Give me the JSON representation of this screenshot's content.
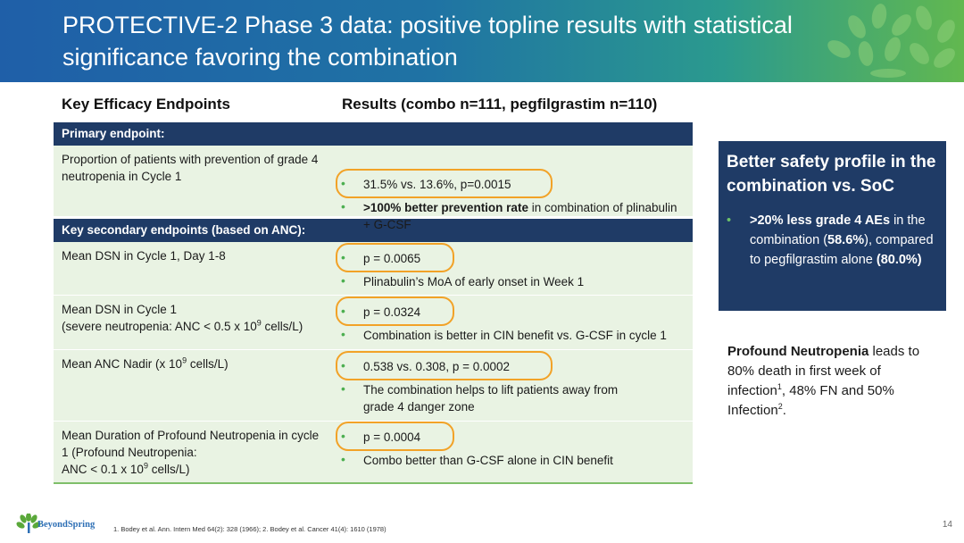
{
  "header": {
    "title": "PROTECTIVE-2 Phase 3 data: positive topline results with statistical significance favoring the combination"
  },
  "columns": {
    "left": "Key Efficacy Endpoints",
    "right": "Results (combo n=111, pegfilgrastim n=110)"
  },
  "primary": {
    "header": "Primary endpoint:",
    "row": {
      "endpoint": "Proportion of patients with prevention of grade 4 neutropenia in Cycle 1",
      "result": "31.5% vs. 13.6%, p=0.0015",
      "note_bold": ">100% better prevention rate",
      "note_rest": " in combination of plinabulin + G-CSF"
    }
  },
  "secondary": {
    "header": "Key secondary endpoints (based on ANC):",
    "rows": [
      {
        "endpoint": "Mean DSN in Cycle 1, Day 1-8",
        "result": "p = 0.0065",
        "note": "Plinabulin’s MoA of early onset in Week 1"
      },
      {
        "endpoint_line1": "Mean DSN in Cycle 1",
        "endpoint_line2a": "(severe neutropenia: ANC < 0.5 x 10",
        "endpoint_line2sup": "9",
        "endpoint_line2b": " cells/L)",
        "result": "p = 0.0324",
        "note": "Combination is better in CIN benefit vs. G-CSF in cycle 1"
      },
      {
        "endpoint_a": "Mean ANC Nadir (x 10",
        "endpoint_sup": "9",
        "endpoint_b": " cells/L)",
        "result": "0.538 vs. 0.308, p = 0.0002",
        "note": "The combination helps to lift patients away from grade 4 danger zone"
      },
      {
        "endpoint_line1": "Mean Duration of Profound Neutropenia in cycle 1 (Profound Neutropenia:",
        "endpoint_line2a": "ANC < 0.1 x 10",
        "endpoint_line2sup": "9",
        "endpoint_line2b": " cells/L)",
        "result": "p = 0.0004",
        "note": "Combo better than G-CSF alone in CIN benefit"
      }
    ]
  },
  "safety": {
    "title": "Better safety profile in the combination vs. SoC",
    "b1": ">20% less grade 4 AEs",
    "t1": " in the combination (",
    "b2": "58.6%",
    "t2": "), compared to pegfilgrastim alone ",
    "b3": "(80.0%)"
  },
  "neutropenia_note": {
    "bold": "Profound Neutropenia",
    "text1": " leads to 80% death in first week of infection",
    "sup1": "1",
    "text2": ", 48% FN and 50% Infection",
    "sup2": "2",
    "text3": "."
  },
  "footer": {
    "logo": "BeyondSpring",
    "footnote": "1. Bodey et al. Ann. Intern Med 64(2): 328 (1966); 2. Bodey et al. Cancer 41(4): 1610 (1978)",
    "page": "14"
  },
  "colors": {
    "navy": "#1f3b66",
    "row_green": "#e9f3e3",
    "highlight_orange": "#f2a227",
    "bullet_green": "#4caf50"
  }
}
